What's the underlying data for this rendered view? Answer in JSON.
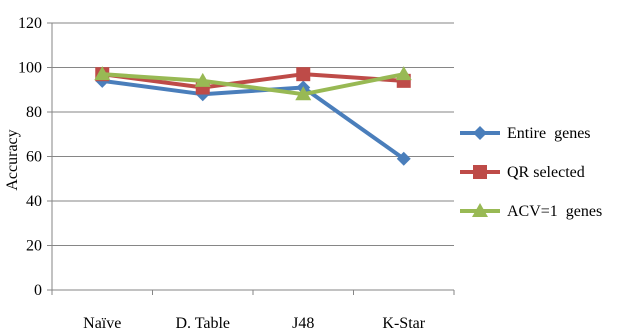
{
  "chart_data": {
    "type": "line",
    "title": "",
    "xlabel": "",
    "ylabel": "Accuracy",
    "categories": [
      "Naïve",
      "D. Table",
      "J48",
      "K-Star"
    ],
    "ylim": [
      0,
      120
    ],
    "yticks": [
      0,
      20,
      40,
      60,
      80,
      100,
      120
    ],
    "grid": true,
    "legend_position": "right",
    "series": [
      {
        "name": "Entire  genes",
        "values": [
          94,
          88,
          91,
          59
        ],
        "color": "#4a7ebb",
        "marker": "diamond"
      },
      {
        "name": "QR selected",
        "values": [
          97,
          91,
          97,
          94
        ],
        "color": "#be4b48",
        "marker": "square"
      },
      {
        "name": "ACV=1  genes",
        "values": [
          97,
          94,
          88,
          97
        ],
        "color": "#98b954",
        "marker": "triangle"
      }
    ]
  }
}
